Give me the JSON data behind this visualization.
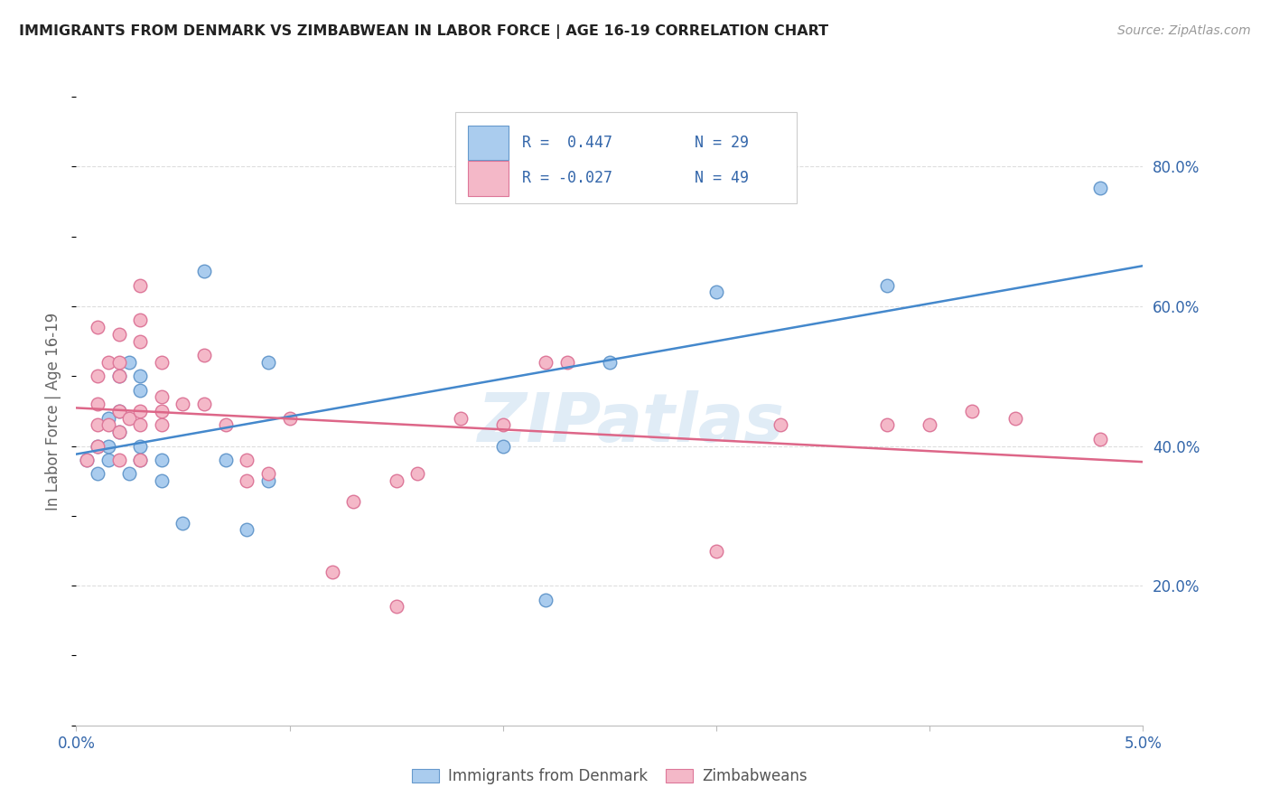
{
  "title": "IMMIGRANTS FROM DENMARK VS ZIMBABWEAN IN LABOR FORCE | AGE 16-19 CORRELATION CHART",
  "source": "Source: ZipAtlas.com",
  "ylabel": "In Labor Force | Age 16-19",
  "xlim": [
    0.0,
    0.05
  ],
  "ylim": [
    0.0,
    0.9
  ],
  "xticks": [
    0.0,
    0.01,
    0.02,
    0.03,
    0.04,
    0.05
  ],
  "xticklabels": [
    "0.0%",
    "",
    "",
    "",
    "",
    "5.0%"
  ],
  "yticks_right": [
    0.2,
    0.4,
    0.6,
    0.8
  ],
  "ytick_labels_right": [
    "20.0%",
    "40.0%",
    "60.0%",
    "80.0%"
  ],
  "denmark_color": "#aaccee",
  "denmark_edge": "#6699cc",
  "zimbabwe_color": "#f4b8c8",
  "zimbabwe_edge": "#dd7799",
  "line_denmark_color": "#4488cc",
  "line_zimbabwe_color": "#dd6688",
  "watermark": "ZIPatlas",
  "legend_R_denmark": "R =  0.447",
  "legend_N_denmark": "N = 29",
  "legend_R_zimbabwe": "R = -0.027",
  "legend_N_zimbabwe": "N = 49",
  "denmark_x": [
    0.0005,
    0.001,
    0.001,
    0.0015,
    0.0015,
    0.0015,
    0.002,
    0.002,
    0.002,
    0.0025,
    0.0025,
    0.003,
    0.003,
    0.003,
    0.003,
    0.004,
    0.004,
    0.005,
    0.006,
    0.007,
    0.008,
    0.009,
    0.009,
    0.02,
    0.022,
    0.025,
    0.03,
    0.038,
    0.048
  ],
  "denmark_y": [
    0.38,
    0.36,
    0.4,
    0.38,
    0.4,
    0.44,
    0.42,
    0.45,
    0.5,
    0.36,
    0.52,
    0.38,
    0.4,
    0.48,
    0.5,
    0.35,
    0.38,
    0.29,
    0.65,
    0.38,
    0.28,
    0.35,
    0.52,
    0.4,
    0.18,
    0.52,
    0.62,
    0.63,
    0.77
  ],
  "zimbabwe_x": [
    0.0005,
    0.001,
    0.001,
    0.001,
    0.001,
    0.001,
    0.0015,
    0.0015,
    0.002,
    0.002,
    0.002,
    0.002,
    0.002,
    0.002,
    0.0025,
    0.003,
    0.003,
    0.003,
    0.003,
    0.003,
    0.003,
    0.004,
    0.004,
    0.004,
    0.004,
    0.005,
    0.006,
    0.006,
    0.007,
    0.008,
    0.008,
    0.009,
    0.01,
    0.012,
    0.013,
    0.015,
    0.015,
    0.016,
    0.018,
    0.02,
    0.022,
    0.023,
    0.03,
    0.033,
    0.038,
    0.04,
    0.042,
    0.044,
    0.048
  ],
  "zimbabwe_y": [
    0.38,
    0.4,
    0.43,
    0.46,
    0.5,
    0.57,
    0.43,
    0.52,
    0.38,
    0.42,
    0.45,
    0.5,
    0.52,
    0.56,
    0.44,
    0.38,
    0.43,
    0.45,
    0.55,
    0.58,
    0.63,
    0.43,
    0.45,
    0.47,
    0.52,
    0.46,
    0.46,
    0.53,
    0.43,
    0.35,
    0.38,
    0.36,
    0.44,
    0.22,
    0.32,
    0.35,
    0.17,
    0.36,
    0.44,
    0.43,
    0.52,
    0.52,
    0.25,
    0.43,
    0.43,
    0.43,
    0.45,
    0.44,
    0.41
  ]
}
